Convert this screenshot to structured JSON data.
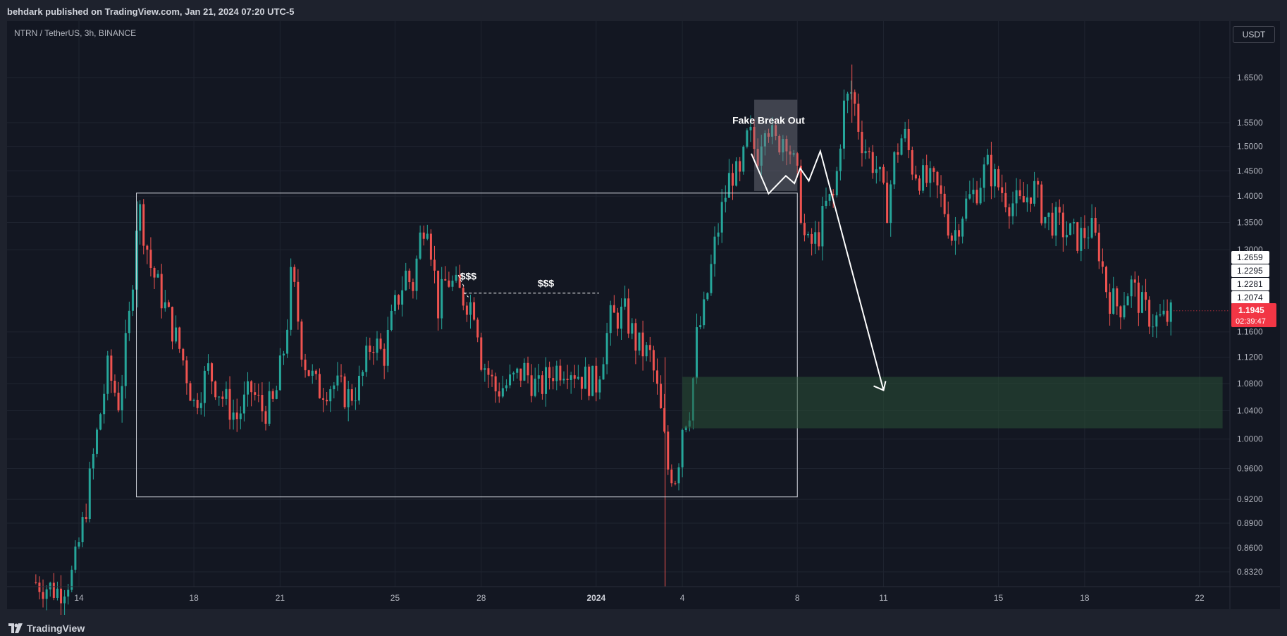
{
  "header": {
    "published_text": "behdark published on TradingView.com, Jan 21, 2024 07:20 UTC-5"
  },
  "footer": {
    "brand": "TradingView"
  },
  "chart_data": {
    "type": "candlestick",
    "symbol": "NTRN / TetherUS, 3h, BINANCE",
    "currency_button": "USDT",
    "y_scale": "log",
    "price_ticks": [
      1.65,
      1.55,
      1.5,
      1.45,
      1.4,
      1.35,
      1.3,
      1.16,
      1.12,
      1.08,
      1.04,
      1.0,
      0.96,
      0.92,
      0.89,
      0.86,
      0.832
    ],
    "price_tick_labels": [
      "1.6500",
      "1.5500",
      "1.5000",
      "1.4500",
      "1.4000",
      "1.3500",
      "1.3000",
      "1.1600",
      "1.1200",
      "1.0800",
      "1.0400",
      "1.0000",
      "0.9600",
      "0.9200",
      "0.8900",
      "0.8600",
      "0.8320"
    ],
    "price_tags": [
      {
        "label": "1.2659",
        "value": 1.2659
      },
      {
        "label": "1.2295",
        "value": 1.2295
      },
      {
        "label": "1.2281",
        "value": 1.2281
      },
      {
        "label": "1.2074",
        "value": 1.2074
      }
    ],
    "current_price": {
      "label": "1.1945",
      "countdown": "02:39:47",
      "value": 1.1945,
      "color": "#f23645"
    },
    "x_start_day": 12.5,
    "x_end_day": 44.4,
    "date_ticks": [
      {
        "label": "14",
        "day": 14
      },
      {
        "label": "18",
        "day": 18
      },
      {
        "label": "21",
        "day": 21
      },
      {
        "label": "25",
        "day": 25
      },
      {
        "label": "28",
        "day": 28
      },
      {
        "label": "2024",
        "day": 32
      },
      {
        "label": "4",
        "day": 35
      },
      {
        "label": "8",
        "day": 39
      },
      {
        "label": "11",
        "day": 42
      },
      {
        "label": "15",
        "day": 46
      },
      {
        "label": "18",
        "day": 49
      },
      {
        "label": "22",
        "day": 53
      }
    ],
    "price_path": [
      [
        12.5,
        0.82
      ],
      [
        13.3,
        0.81
      ],
      [
        13.8,
        0.83
      ],
      [
        14.2,
        0.9
      ],
      [
        14.6,
        1.0
      ],
      [
        15.0,
        1.1
      ],
      [
        15.4,
        1.05
      ],
      [
        15.8,
        1.2
      ],
      [
        16.05,
        1.39
      ],
      [
        16.5,
        1.27
      ],
      [
        17.0,
        1.2
      ],
      [
        17.6,
        1.12
      ],
      [
        18.0,
        1.05
      ],
      [
        18.5,
        1.1
      ],
      [
        19.0,
        1.06
      ],
      [
        19.5,
        1.03
      ],
      [
        20.0,
        1.07
      ],
      [
        20.4,
        1.04
      ],
      [
        20.8,
        1.05
      ],
      [
        21.2,
        1.15
      ],
      [
        21.4,
        1.26
      ],
      [
        21.8,
        1.12
      ],
      [
        22.3,
        1.07
      ],
      [
        22.8,
        1.08
      ],
      [
        23.4,
        1.06
      ],
      [
        23.8,
        1.08
      ],
      [
        24.2,
        1.15
      ],
      [
        24.6,
        1.12
      ],
      [
        25.0,
        1.2
      ],
      [
        25.4,
        1.26
      ],
      [
        25.6,
        1.23
      ],
      [
        25.9,
        1.33
      ],
      [
        26.1,
        1.37
      ],
      [
        26.5,
        1.2
      ],
      [
        26.8,
        1.25
      ],
      [
        27.3,
        1.22
      ],
      [
        27.8,
        1.2
      ],
      [
        28.0,
        1.12
      ],
      [
        28.5,
        1.07
      ],
      [
        29.0,
        1.08
      ],
      [
        29.5,
        1.1
      ],
      [
        30.0,
        1.07
      ],
      [
        30.5,
        1.1
      ],
      [
        31.0,
        1.11
      ],
      [
        31.5,
        1.09
      ],
      [
        32.0,
        1.08
      ],
      [
        32.5,
        1.18
      ],
      [
        33.0,
        1.19
      ],
      [
        33.4,
        1.14
      ],
      [
        33.9,
        1.12
      ],
      [
        34.2,
        1.05
      ],
      [
        34.5,
        0.96
      ],
      [
        34.8,
        0.95
      ],
      [
        35.0,
        1.02
      ],
      [
        35.3,
        1.05
      ],
      [
        35.5,
        1.15
      ],
      [
        35.8,
        1.2
      ],
      [
        36.1,
        1.3
      ],
      [
        36.4,
        1.38
      ],
      [
        36.7,
        1.45
      ],
      [
        37.0,
        1.43
      ],
      [
        37.3,
        1.53
      ],
      [
        37.6,
        1.48
      ],
      [
        37.9,
        1.57
      ],
      [
        38.2,
        1.5
      ],
      [
        38.6,
        1.53
      ],
      [
        39.0,
        1.43
      ],
      [
        39.3,
        1.3
      ],
      [
        39.7,
        1.32
      ],
      [
        40.0,
        1.38
      ],
      [
        40.3,
        1.4
      ],
      [
        40.6,
        1.58
      ],
      [
        40.9,
        1.62
      ],
      [
        41.2,
        1.52
      ],
      [
        41.5,
        1.48
      ],
      [
        41.8,
        1.45
      ],
      [
        42.1,
        1.37
      ],
      [
        42.4,
        1.48
      ],
      [
        42.7,
        1.53
      ],
      [
        43.0,
        1.46
      ],
      [
        43.4,
        1.43
      ],
      [
        43.8,
        1.42
      ],
      [
        44.1,
        1.38
      ],
      [
        44.4,
        1.32
      ],
      [
        44.8,
        1.38
      ],
      [
        45.2,
        1.41
      ],
      [
        45.6,
        1.46
      ],
      [
        46.0,
        1.42
      ],
      [
        46.4,
        1.39
      ],
      [
        46.8,
        1.38
      ],
      [
        47.2,
        1.42
      ],
      [
        47.6,
        1.36
      ],
      [
        48.0,
        1.35
      ],
      [
        48.4,
        1.33
      ],
      [
        48.8,
        1.32
      ],
      [
        49.2,
        1.34
      ],
      [
        49.5,
        1.3
      ],
      [
        49.8,
        1.22
      ],
      [
        50.2,
        1.2
      ],
      [
        50.6,
        1.24
      ],
      [
        51.0,
        1.2
      ],
      [
        51.4,
        1.18
      ],
      [
        51.8,
        1.18
      ],
      [
        52.1,
        1.19
      ]
    ],
    "x_end_price_day": 52.1,
    "annotations": [
      {
        "type": "box",
        "label": "range-box",
        "from_day": 16.0,
        "to_day": 39.0,
        "from_price": 0.923,
        "to_price": 1.406
      },
      {
        "type": "box",
        "label": "fake-breakout-box",
        "from_day": 37.5,
        "to_day": 39.0,
        "from_price": 1.41,
        "to_price": 1.6,
        "fill": "rgba(120,123,134,0.45)"
      },
      {
        "type": "box",
        "label": "target-zone",
        "from_day": 35.0,
        "to_day": 53.8,
        "from_price": 1.015,
        "to_price": 1.09,
        "fill": "rgba(42,80,55,0.55)"
      },
      {
        "type": "text",
        "text": "Fake Break Out",
        "day": 38.0,
        "price": 1.548
      },
      {
        "type": "text",
        "text": "$$$",
        "day": 27.55,
        "price": 1.247
      },
      {
        "type": "text",
        "text": "$$$",
        "day": 30.25,
        "price": 1.235
      }
    ]
  }
}
